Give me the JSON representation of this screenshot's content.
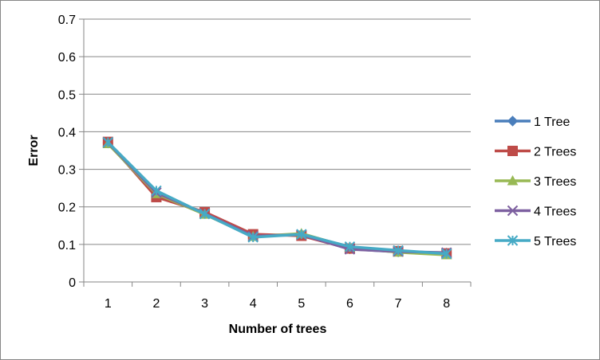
{
  "chart_data": {
    "type": "line",
    "title": "",
    "xlabel": "Number of trees",
    "ylabel": "Error",
    "x": [
      1,
      2,
      3,
      4,
      5,
      6,
      7,
      8
    ],
    "xtick_labels": [
      "1",
      "2",
      "3",
      "4",
      "5",
      "6",
      "7",
      "8"
    ],
    "ylim": [
      0,
      0.7
    ],
    "ytick_labels": [
      "0",
      "0.1",
      "0.2",
      "0.3",
      "0.4",
      "0.5",
      "0.6",
      "0.7"
    ],
    "yticks": [
      0,
      0.1,
      0.2,
      0.3,
      0.4,
      0.5,
      0.6,
      0.7
    ],
    "grid": "horizontal",
    "legend_position": "right",
    "series": [
      {
        "name": "1 Tree",
        "color": "#4a7ebb",
        "marker": "diamond",
        "values": [
          0.37,
          0.23,
          0.183,
          0.125,
          0.125,
          0.088,
          0.08,
          0.077
        ]
      },
      {
        "name": "2 Trees",
        "color": "#be4b48",
        "marker": "square",
        "values": [
          0.373,
          0.226,
          0.186,
          0.127,
          0.123,
          0.089,
          0.082,
          0.076
        ]
      },
      {
        "name": "3 Trees",
        "color": "#98b954",
        "marker": "triangle",
        "values": [
          0.368,
          0.235,
          0.18,
          0.121,
          0.129,
          0.092,
          0.079,
          0.072
        ]
      },
      {
        "name": "4 Trees",
        "color": "#7d60a0",
        "marker": "x",
        "values": [
          0.371,
          0.238,
          0.182,
          0.122,
          0.126,
          0.087,
          0.081,
          0.078
        ]
      },
      {
        "name": "5 Trees",
        "color": "#46aac5",
        "marker": "asterisk",
        "values": [
          0.372,
          0.243,
          0.181,
          0.119,
          0.127,
          0.094,
          0.084,
          0.075
        ]
      }
    ]
  }
}
